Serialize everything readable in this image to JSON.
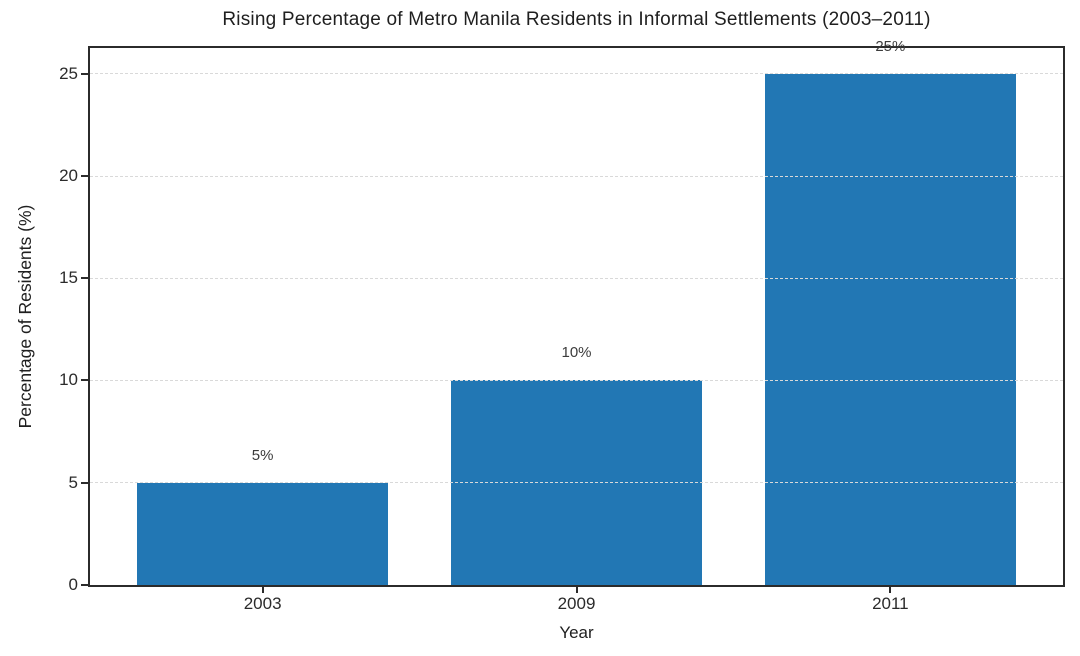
{
  "chart_data": {
    "type": "bar",
    "title": "Rising Percentage of Metro Manila Residents in Informal Settlements (2003–2011)",
    "xlabel": "Year",
    "ylabel": "Percentage of Residents (%)",
    "categories": [
      "2003",
      "2009",
      "2011"
    ],
    "values": [
      5,
      10,
      25
    ],
    "bar_labels": [
      "5%",
      "10%",
      "25%"
    ],
    "yticks": [
      0,
      5,
      10,
      15,
      20,
      25
    ],
    "ytick_labels": [
      "0",
      "5",
      "10",
      "15",
      "20",
      "25"
    ],
    "ylim": [
      0,
      26.25
    ],
    "xlim_units": [
      -0.55,
      2.55
    ],
    "bar_width_units": 0.8,
    "grid": "horizontal dashed, drawn above bars",
    "legend": "none",
    "colors": {
      "bar": "#2277b4",
      "spine": "#2b2b2b",
      "grid": "#d9d9d9",
      "title_text": "#1f1f1f",
      "tick_text": "#2b2b2b",
      "bar_label_text": "#3c3c3c",
      "background": "#ffffff"
    }
  }
}
